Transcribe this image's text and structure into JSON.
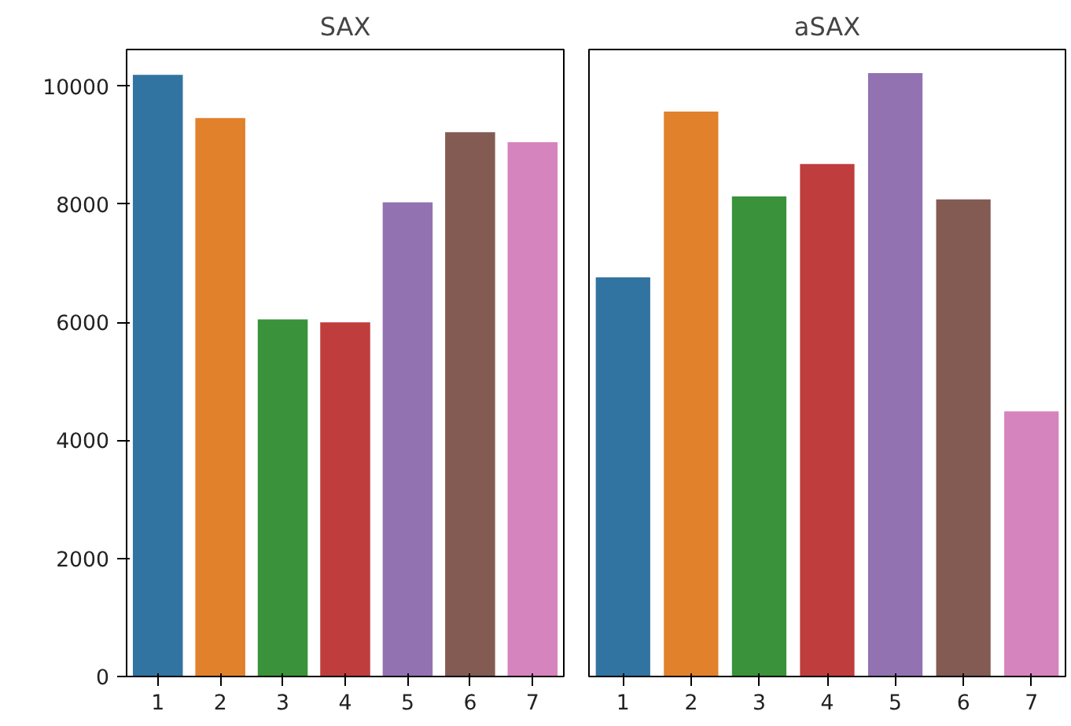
{
  "chart_data": [
    {
      "type": "bar",
      "title": "SAX",
      "categories": [
        "1",
        "2",
        "3",
        "4",
        "5",
        "6",
        "7"
      ],
      "values": [
        10190,
        9460,
        6050,
        6000,
        8030,
        9220,
        9050
      ],
      "colors": [
        "#3274a1",
        "#e1812c",
        "#3a923a",
        "#c03d3e",
        "#9372b2",
        "#845b53",
        "#d684bd"
      ],
      "ylim": [
        0,
        10620
      ],
      "yticks": [
        0,
        2000,
        4000,
        6000,
        8000,
        10000
      ],
      "grid": false
    },
    {
      "type": "bar",
      "title": "aSAX",
      "categories": [
        "1",
        "2",
        "3",
        "4",
        "5",
        "6",
        "7"
      ],
      "values": [
        6760,
        9570,
        8130,
        8680,
        10220,
        8080,
        4490
      ],
      "colors": [
        "#3274a1",
        "#e1812c",
        "#3a923a",
        "#c03d3e",
        "#9372b2",
        "#845b53",
        "#d684bd"
      ],
      "ylim": [
        0,
        10620
      ],
      "yticks": [
        0,
        2000,
        4000,
        6000,
        8000,
        10000
      ],
      "grid": false,
      "tick_labels": "x"
    }
  ]
}
